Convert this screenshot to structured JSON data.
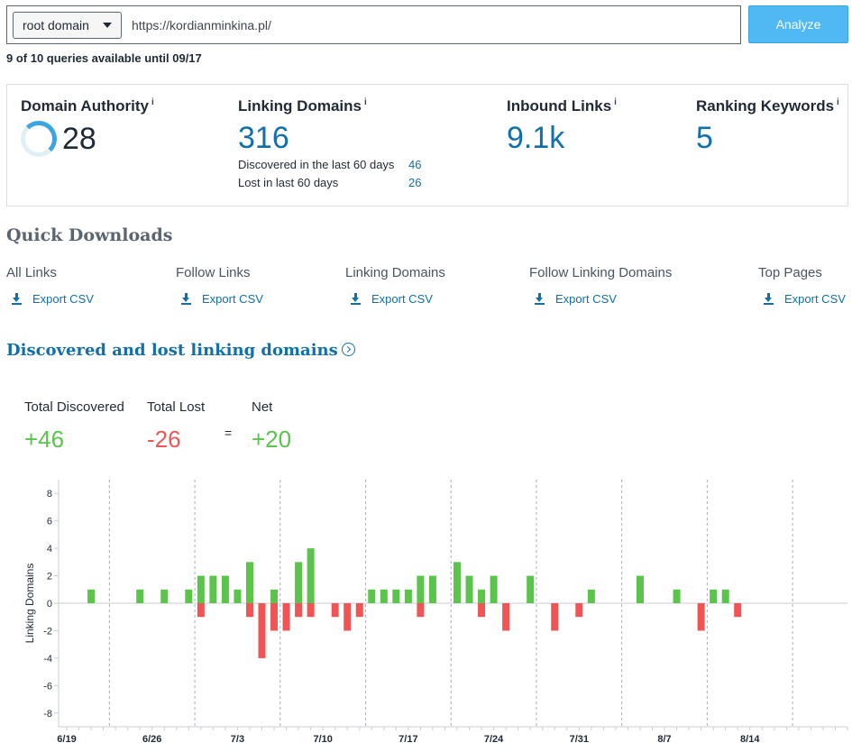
{
  "search": {
    "scope": "root domain",
    "url": "https://kordianminkina.pl/",
    "analyze_label": "Analyze",
    "quota": "9 of 10 queries available until 09/17"
  },
  "metrics": {
    "info": "i",
    "domain_authority": {
      "label": "Domain Authority",
      "value": "28"
    },
    "linking_domains": {
      "label": "Linking Domains",
      "value": "316",
      "discovered_label": "Discovered in the last 60 days",
      "discovered_value": "46",
      "lost_label": "Lost in last 60 days",
      "lost_value": "26"
    },
    "inbound_links": {
      "label": "Inbound Links",
      "value": "9.1k"
    },
    "ranking_keywords": {
      "label": "Ranking Keywords",
      "value": "5"
    }
  },
  "quick_downloads": {
    "title": "Quick Downloads",
    "export_label": "Export CSV",
    "items": [
      {
        "label": "All Links"
      },
      {
        "label": "Follow Links"
      },
      {
        "label": "Linking Domains"
      },
      {
        "label": "Follow Linking Domains"
      },
      {
        "label": "Top Pages"
      }
    ]
  },
  "discovered_lost": {
    "title": "Discovered and lost linking domains",
    "total_discovered_label": "Total Discovered",
    "total_discovered_value": "+46",
    "total_lost_label": "Total Lost",
    "total_lost_value": "-26",
    "equals": "=",
    "net_label": "Net",
    "net_value": "+20"
  },
  "colors": {
    "discovered": "#5ac44b",
    "lost": "#f15454",
    "accent": "#1170aa",
    "button": "#50b8f2"
  },
  "chart_data": {
    "type": "bar",
    "ylabel": "Linking Domains",
    "ylim": [
      -9,
      9
    ],
    "yticks": [
      8,
      6,
      4,
      2,
      0,
      -2,
      -4,
      -6,
      -8
    ],
    "xticks": [
      "6/19",
      "6/26",
      "7/3",
      "7/10",
      "7/17",
      "7/24",
      "7/31",
      "8/7",
      "8/14"
    ],
    "x_start": "6/19",
    "x_end": "8/22",
    "grid": "vertical weekly dashed",
    "series": [
      {
        "name": "Discovered",
        "points": [
          [
            "6/21",
            1
          ],
          [
            "6/25",
            1
          ],
          [
            "6/27",
            1
          ],
          [
            "6/29",
            1
          ],
          [
            "6/30",
            2
          ],
          [
            "7/1",
            2
          ],
          [
            "7/2",
            2
          ],
          [
            "7/3",
            1
          ],
          [
            "7/4",
            3
          ],
          [
            "7/6",
            1
          ],
          [
            "7/8",
            3
          ],
          [
            "7/9",
            4
          ],
          [
            "7/14",
            1
          ],
          [
            "7/15",
            1
          ],
          [
            "7/16",
            1
          ],
          [
            "7/17",
            1
          ],
          [
            "7/18",
            2
          ],
          [
            "7/19",
            2
          ],
          [
            "7/21",
            3
          ],
          [
            "7/22",
            2
          ],
          [
            "7/23",
            1
          ],
          [
            "7/24",
            2
          ],
          [
            "7/27",
            2
          ],
          [
            "8/1",
            1
          ],
          [
            "8/5",
            2
          ],
          [
            "8/8",
            1
          ],
          [
            "8/11",
            1
          ],
          [
            "8/12",
            1
          ]
        ]
      },
      {
        "name": "Lost",
        "points": [
          [
            "6/30",
            -1
          ],
          [
            "7/4",
            -1
          ],
          [
            "7/5",
            -4
          ],
          [
            "7/6",
            -2
          ],
          [
            "7/7",
            -2
          ],
          [
            "7/8",
            -1
          ],
          [
            "7/9",
            -1
          ],
          [
            "7/11",
            -1
          ],
          [
            "7/12",
            -2
          ],
          [
            "7/13",
            -1
          ],
          [
            "7/18",
            -1
          ],
          [
            "7/23",
            -1
          ],
          [
            "7/25",
            -2
          ],
          [
            "7/29",
            -2
          ],
          [
            "7/31",
            -1
          ],
          [
            "8/10",
            -2
          ],
          [
            "8/13",
            -1
          ]
        ]
      }
    ]
  }
}
